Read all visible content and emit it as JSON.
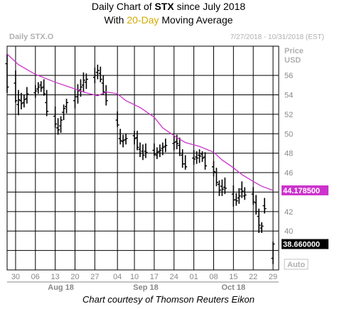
{
  "header": {
    "title_pre": "Daily Chart of ",
    "ticker": "STX",
    "title_post": " since July 2018",
    "subtitle_pre": "With ",
    "ma_label": "20-Day",
    "subtitle_post": " Moving Average"
  },
  "chart_panel": {
    "symbol_label": "Daily STX.O",
    "date_range": "7/27/2018 - 10/31/2018 (EST)",
    "price_label": "Price",
    "currency_label": "USD",
    "auto_label": "Auto"
  },
  "caption": "Chart courtesy of Thomson Reuters Eikon",
  "colors": {
    "background": "#ffffff",
    "grid": "#000000",
    "price_bars": "#000000",
    "moving_average": "#cc33cc",
    "title_highlight": "#d4a800",
    "panel_label": "#b0b0b0"
  },
  "chart_data": {
    "type": "ohlc_bar",
    "title": "Daily Chart of STX since July 2018",
    "subtitle": "With 20-Day Moving Average",
    "ylim": [
      36,
      59
    ],
    "y_ticks": [
      38,
      40,
      42,
      44,
      46,
      48,
      50,
      52,
      54,
      56
    ],
    "y_ticks_labeled": [
      40,
      42,
      44,
      46,
      48,
      50,
      52,
      54,
      56
    ],
    "x_tick_labels": [
      "30",
      "06",
      "13",
      "20",
      "27",
      "04",
      "10",
      "17",
      "24",
      "01",
      "08",
      "15",
      "22",
      "29"
    ],
    "x_tick_label_color": "#000000",
    "month_labels": [
      "Aug 18",
      "Sep 18",
      "Oct 18"
    ],
    "grid": true,
    "value_labels": [
      {
        "value": 44.1785,
        "text": "44.178500",
        "series": "20-Day Moving Average"
      },
      {
        "value": 38.66,
        "text": "38.660000",
        "series": "STX"
      }
    ],
    "series": [
      {
        "type": "ohlc",
        "dates": [
          "2018-07-27",
          "2018-07-30",
          "2018-07-31",
          "2018-08-01",
          "2018-08-02",
          "2018-08-03",
          "2018-08-06",
          "2018-08-07",
          "2018-08-08",
          "2018-08-09",
          "2018-08-10",
          "2018-08-13",
          "2018-08-14",
          "2018-08-15",
          "2018-08-16",
          "2018-08-17",
          "2018-08-20",
          "2018-08-21",
          "2018-08-22",
          "2018-08-23",
          "2018-08-24",
          "2018-08-27",
          "2018-08-28",
          "2018-08-29",
          "2018-08-30",
          "2018-08-31",
          "2018-09-04",
          "2018-09-05",
          "2018-09-06",
          "2018-09-07",
          "2018-09-10",
          "2018-09-11",
          "2018-09-12",
          "2018-09-13",
          "2018-09-14",
          "2018-09-17",
          "2018-09-18",
          "2018-09-19",
          "2018-09-20",
          "2018-09-21",
          "2018-09-24",
          "2018-09-25",
          "2018-09-26",
          "2018-09-27",
          "2018-09-28",
          "2018-10-01",
          "2018-10-02",
          "2018-10-03",
          "2018-10-04",
          "2018-10-05",
          "2018-10-08",
          "2018-10-09",
          "2018-10-10",
          "2018-10-11",
          "2018-10-12",
          "2018-10-15",
          "2018-10-16",
          "2018-10-17",
          "2018-10-18",
          "2018-10-19",
          "2018-10-22",
          "2018-10-23",
          "2018-10-24",
          "2018-10-25",
          "2018-10-26",
          "2018-10-29"
        ],
        "open": [
          57.2,
          55.2,
          53.0,
          53.4,
          53.2,
          53.6,
          54.2,
          54.6,
          55.0,
          54.8,
          53.2,
          51.8,
          50.6,
          50.8,
          52.2,
          52.8,
          53.4,
          53.8,
          54.5,
          55.0,
          55.3,
          55.8,
          56.3,
          56.2,
          55.2,
          54.2,
          51.4,
          49.5,
          49.2,
          49.4,
          49.8,
          49.6,
          48.4,
          48.2,
          48.2,
          48.3,
          47.8,
          48.2,
          48.5,
          48.7,
          49.0,
          49.2,
          48.8,
          47.8,
          46.9,
          47.5,
          47.6,
          47.8,
          47.9,
          47.6,
          46.6,
          46.0,
          44.8,
          44.6,
          44.5,
          43.8,
          43.2,
          43.4,
          44.3,
          43.6,
          43.8,
          42.9,
          41.5,
          40.3,
          42.6,
          37.2
        ],
        "high": [
          58.2,
          56.5,
          54.5,
          54.2,
          54.0,
          54.8,
          55.0,
          55.3,
          55.4,
          55.6,
          54.5,
          52.8,
          51.6,
          51.8,
          53.0,
          53.6,
          54.5,
          55.1,
          55.6,
          56.3,
          56.2,
          56.8,
          57.1,
          56.9,
          56.0,
          55.0,
          52.3,
          50.5,
          49.9,
          50.0,
          50.3,
          50.3,
          49.1,
          48.9,
          49.0,
          49.0,
          48.6,
          48.9,
          49.1,
          49.5,
          49.8,
          49.9,
          49.6,
          48.4,
          47.8,
          48.3,
          48.2,
          48.4,
          48.2,
          48.1,
          47.2,
          46.5,
          45.2,
          45.3,
          45.5,
          44.7,
          43.9,
          44.4,
          45.1,
          44.5,
          44.5,
          43.7,
          42.3,
          40.9,
          43.4,
          38.9
        ],
        "low": [
          54.2,
          53.2,
          51.9,
          52.5,
          52.7,
          53.1,
          53.7,
          54.1,
          54.3,
          53.9,
          51.8,
          50.6,
          49.9,
          50.1,
          51.4,
          52.1,
          52.6,
          53.1,
          53.8,
          54.3,
          54.6,
          55.2,
          55.6,
          55.3,
          54.0,
          52.9,
          50.7,
          48.9,
          48.6,
          48.9,
          48.9,
          48.3,
          47.6,
          47.3,
          47.5,
          47.7,
          47.4,
          47.6,
          47.8,
          48.1,
          48.3,
          48.4,
          47.7,
          46.5,
          46.3,
          46.8,
          46.9,
          47.0,
          47.1,
          46.3,
          45.6,
          44.6,
          43.6,
          43.6,
          43.8,
          42.5,
          42.6,
          42.8,
          43.4,
          43.2,
          42.7,
          41.7,
          39.8,
          39.8,
          41.8,
          36.6
        ],
        "close": [
          54.8,
          53.4,
          53.5,
          53.1,
          53.5,
          54.1,
          54.4,
          54.8,
          54.7,
          54.1,
          52.3,
          51.0,
          50.4,
          51.4,
          52.6,
          53.2,
          53.8,
          54.4,
          54.8,
          55.5,
          55.6,
          56.0,
          56.5,
          55.6,
          54.3,
          53.4,
          50.9,
          49.3,
          49.3,
          49.5,
          49.5,
          48.6,
          48.0,
          47.8,
          48.1,
          47.9,
          48.1,
          48.3,
          48.6,
          48.8,
          49.1,
          49.0,
          48.0,
          46.9,
          46.6,
          47.4,
          47.5,
          47.7,
          47.5,
          46.7,
          46.1,
          45.0,
          44.2,
          44.3,
          44.4,
          43.2,
          43.1,
          43.6,
          44.1,
          43.7,
          43.0,
          42.0,
          40.6,
          40.5,
          42.3,
          38.66
        ]
      },
      {
        "name": "20-Day Moving Average",
        "type": "line",
        "points": [
          [
            "2018-07-27",
            58.2
          ],
          [
            "2018-07-31",
            57.1
          ],
          [
            "2018-08-06",
            56.1
          ],
          [
            "2018-08-13",
            55.3
          ],
          [
            "2018-08-20",
            54.6
          ],
          [
            "2018-08-24",
            54.2
          ],
          [
            "2018-08-28",
            53.9
          ],
          [
            "2018-08-31",
            54.3
          ],
          [
            "2018-09-04",
            54.1
          ],
          [
            "2018-09-07",
            53.4
          ],
          [
            "2018-09-12",
            52.7
          ],
          [
            "2018-09-17",
            51.7
          ],
          [
            "2018-09-20",
            50.6
          ],
          [
            "2018-09-25",
            49.6
          ],
          [
            "2018-09-28",
            49.1
          ],
          [
            "2018-10-03",
            48.7
          ],
          [
            "2018-10-08",
            48.1
          ],
          [
            "2018-10-11",
            47.3
          ],
          [
            "2018-10-15",
            46.5
          ],
          [
            "2018-10-18",
            45.8
          ],
          [
            "2018-10-22",
            45.1
          ],
          [
            "2018-10-25",
            44.6
          ],
          [
            "2018-10-29",
            44.1785
          ]
        ]
      }
    ]
  }
}
